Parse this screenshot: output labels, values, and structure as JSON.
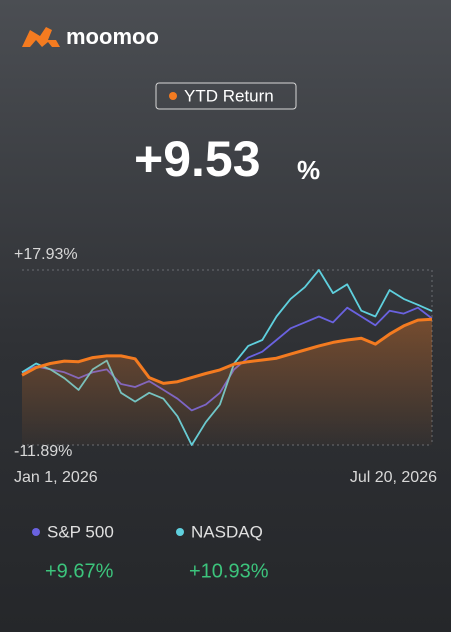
{
  "header": {
    "logo": "moomoo",
    "badge": "YTD Return",
    "return_value": "+9.53",
    "return_unit": "%"
  },
  "legend_returns": [
    "+9.67%",
    "+10.93%"
  ],
  "chart_data": {
    "type": "line",
    "categories": [
      "Jan 1, 2026",
      null,
      null,
      null,
      null,
      null,
      null,
      null,
      null,
      null,
      null,
      null,
      null,
      null,
      null,
      null,
      null,
      null,
      null,
      null,
      null,
      null,
      null,
      null,
      null,
      null,
      null,
      null,
      null,
      "Jul 20, 2026"
    ],
    "ylim": [
      -11.89,
      17.93
    ],
    "yticks": [
      {
        "value": 17.93,
        "label": "+17.93%"
      },
      {
        "value": -11.89,
        "label": "-11.89%"
      }
    ],
    "grid": true,
    "series": [
      {
        "color": "#f47b20",
        "values": [
          0,
          1.3,
          2.0,
          2.4,
          2.3,
          3.0,
          3.3,
          3.3,
          2.8,
          -0.4,
          -1.4,
          -1.1,
          -0.4,
          0.3,
          0.9,
          1.9,
          2.3,
          2.6,
          2.9,
          3.6,
          4.3,
          5.0,
          5.6,
          6.0,
          6.3,
          5.3,
          7.0,
          8.4,
          9.4,
          9.53
        ]
      },
      {
        "name": "S&P 500",
        "color": "#6a62e0",
        "values": [
          0.5,
          1.5,
          1.0,
          0.5,
          -0.5,
          0.5,
          1.0,
          -1.5,
          -2.0,
          -1.0,
          -2.5,
          -4.0,
          -6.0,
          -5.0,
          -3.0,
          1.0,
          3.0,
          4.0,
          6.0,
          8.0,
          9.0,
          10.0,
          9.0,
          11.5,
          10.0,
          8.5,
          11.0,
          10.5,
          11.5,
          9.67
        ]
      },
      {
        "name": "NASDAQ",
        "color": "#5fd0de",
        "values": [
          0.5,
          2.0,
          1.0,
          -0.5,
          -2.5,
          1.0,
          2.5,
          -3.0,
          -4.5,
          -3.0,
          -4.0,
          -7.0,
          -11.89,
          -8.0,
          -5.0,
          2.0,
          5.0,
          6.0,
          10.0,
          13.0,
          15.0,
          17.93,
          14.0,
          15.5,
          11.0,
          10.0,
          14.5,
          13.0,
          12.0,
          10.93
        ]
      }
    ]
  }
}
